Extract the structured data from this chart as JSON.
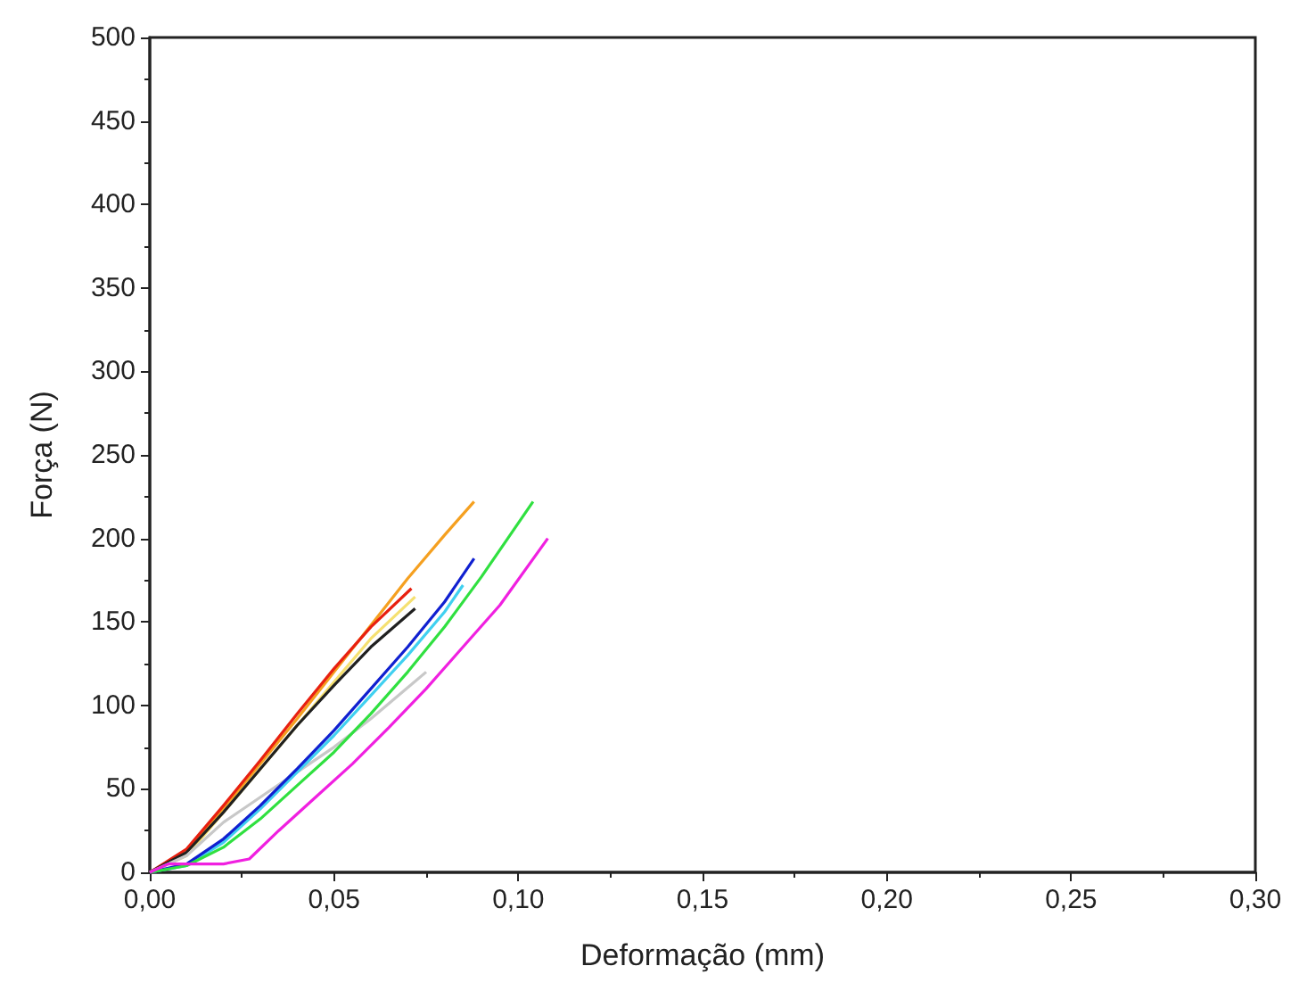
{
  "chart_data": {
    "type": "line",
    "xlabel": "Deformação (mm)",
    "ylabel": "Força (N)",
    "xlim": [
      0,
      0.3
    ],
    "ylim": [
      0,
      500
    ],
    "xticks": [
      {
        "value": 0,
        "label": "0,00"
      },
      {
        "value": 0.05,
        "label": "0,05"
      },
      {
        "value": 0.1,
        "label": "0,10"
      },
      {
        "value": 0.15,
        "label": "0,15"
      },
      {
        "value": 0.2,
        "label": "0,20"
      },
      {
        "value": 0.25,
        "label": "0,25"
      },
      {
        "value": 0.3,
        "label": "0,30"
      }
    ],
    "yticks": [
      0,
      50,
      100,
      150,
      200,
      250,
      300,
      350,
      400,
      450,
      500
    ],
    "marker": "none",
    "line_style": "solid",
    "series": [
      {
        "color": "#f5a020",
        "x": [
          0,
          0.01,
          0.02,
          0.03,
          0.04,
          0.05,
          0.06,
          0.07,
          0.08,
          0.088
        ],
        "values": [
          0,
          12,
          38,
          65,
          92,
          120,
          148,
          176,
          202,
          222
        ]
      },
      {
        "color": "#f5e070",
        "x": [
          0,
          0.01,
          0.02,
          0.04,
          0.06,
          0.072
        ],
        "values": [
          0,
          10,
          36,
          88,
          140,
          165
        ]
      },
      {
        "color": "#e82010",
        "x": [
          0,
          0.01,
          0.02,
          0.03,
          0.04,
          0.05,
          0.06,
          0.071
        ],
        "values": [
          0,
          14,
          40,
          67,
          95,
          122,
          147,
          170
        ]
      },
      {
        "color": "#202020",
        "x": [
          0,
          0.01,
          0.02,
          0.03,
          0.04,
          0.05,
          0.06,
          0.072
        ],
        "values": [
          0,
          12,
          36,
          62,
          88,
          112,
          135,
          158
        ]
      },
      {
        "color": "#c8c8c8",
        "x": [
          0,
          0.01,
          0.02,
          0.03,
          0.04,
          0.05,
          0.06,
          0.075
        ],
        "values": [
          0,
          10,
          30,
          45,
          60,
          75,
          92,
          120
        ]
      },
      {
        "color": "#40d0f0",
        "x": [
          0,
          0.01,
          0.02,
          0.03,
          0.04,
          0.05,
          0.06,
          0.07,
          0.08,
          0.085
        ],
        "values": [
          0,
          4,
          18,
          38,
          60,
          82,
          106,
          130,
          156,
          172
        ]
      },
      {
        "color": "#1020d0",
        "x": [
          0,
          0.01,
          0.02,
          0.03,
          0.04,
          0.05,
          0.06,
          0.07,
          0.08,
          0.088
        ],
        "values": [
          0,
          5,
          20,
          40,
          62,
          85,
          110,
          135,
          162,
          188
        ]
      },
      {
        "color": "#30e040",
        "x": [
          0,
          0.01,
          0.02,
          0.03,
          0.04,
          0.05,
          0.06,
          0.07,
          0.08,
          0.09,
          0.104
        ],
        "values": [
          0,
          4,
          15,
          32,
          52,
          72,
          95,
          120,
          147,
          177,
          222
        ]
      },
      {
        "color": "#f020e0",
        "x": [
          0,
          0.005,
          0.02,
          0.027,
          0.035,
          0.045,
          0.055,
          0.065,
          0.075,
          0.085,
          0.095,
          0.108
        ],
        "values": [
          0,
          5,
          5,
          8,
          25,
          45,
          65,
          87,
          110,
          135,
          160,
          200
        ]
      }
    ]
  }
}
